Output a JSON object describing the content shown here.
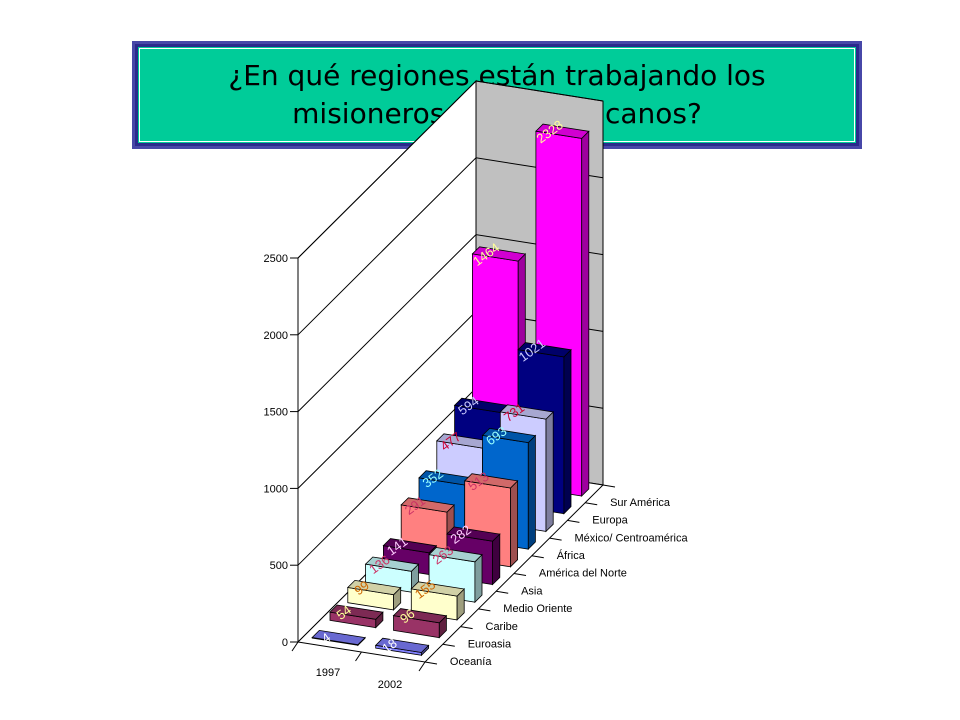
{
  "title": "¿En qué regiones están trabajando los misioneros iberoamericanos?",
  "chart_data": {
    "type": "bar",
    "style": "3d-column",
    "years": [
      "1997",
      "2002"
    ],
    "y_ticks": [
      "0",
      "500",
      "1000",
      "1500",
      "2000",
      "2500"
    ],
    "ylim": [
      0,
      2500
    ],
    "regions": [
      "Oceanía",
      "Euroasia",
      "Caribe",
      "Medio Oriente",
      "Asia",
      "América del Norte",
      "África",
      "México/ Centroamérica",
      "Europa",
      "Sur América"
    ],
    "series": [
      {
        "name": "Oceanía",
        "values": [
          4,
          18
        ]
      },
      {
        "name": "Euroasia",
        "values": [
          54,
          96
        ]
      },
      {
        "name": "Caribe",
        "values": [
          99,
          155
        ]
      },
      {
        "name": "Medio Oriente",
        "values": [
          136,
          263
        ]
      },
      {
        "name": "Asia",
        "values": [
          141,
          282
        ]
      },
      {
        "name": "América del Norte",
        "values": [
          291,
          513
        ]
      },
      {
        "name": "África",
        "values": [
          352,
          693
        ]
      },
      {
        "name": "México/ Centroamérica",
        "values": [
          477,
          731
        ]
      },
      {
        "name": "Europa",
        "values": [
          594,
          1021
        ]
      },
      {
        "name": "Sur América",
        "values": [
          1464,
          2328
        ]
      }
    ],
    "colors": [
      "#8080ff",
      "#993366",
      "#ffffcc",
      "#ccffff",
      "#660066",
      "#ff8080",
      "#0066cc",
      "#ccccff",
      "#000080",
      "#ff00ff"
    ],
    "label_colors": [
      "#ffffff",
      "#ffff99",
      "#cc6600",
      "#cc3366",
      "#ffccff",
      "#cc3366",
      "#99ffff",
      "#cc0033",
      "#ccccff",
      "#ffff99"
    ]
  }
}
